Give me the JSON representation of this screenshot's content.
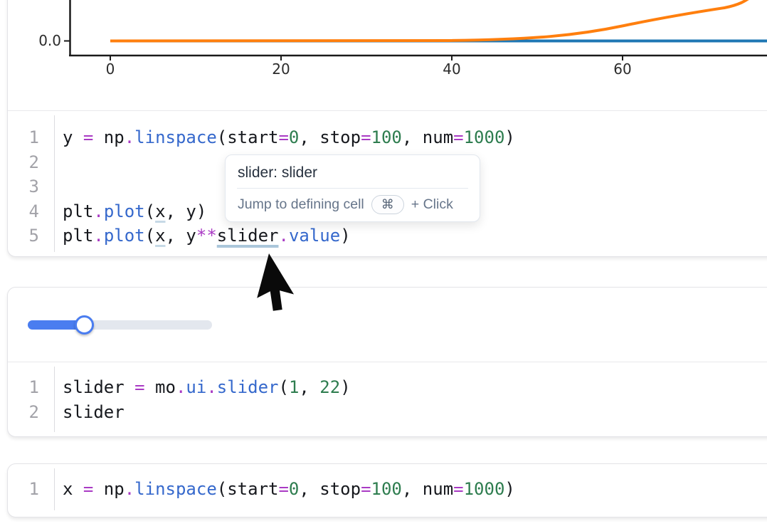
{
  "app": {
    "name": "marimo notebook"
  },
  "colors": {
    "accent_blue": "#4a7df0",
    "plot_blue": "#1f77b4",
    "plot_orange": "#ff7f0e",
    "syntax_operator": "#a93ac4",
    "syntax_function": "#3568cc",
    "syntax_number": "#2e7d4f",
    "slider_track": "#e3e7ee"
  },
  "chart": {
    "y_tick_label": "0.0",
    "x_tick_labels": [
      "0",
      "20",
      "40",
      "60"
    ]
  },
  "chart_data": {
    "type": "line",
    "title": "",
    "xlabel": "",
    "ylabel": "",
    "x_ticks_shown": [
      0,
      20,
      40,
      60
    ],
    "y_ticks_shown": [
      0.0
    ],
    "grid": false,
    "legend": "none",
    "note": "top of figure cropped by viewport; x axis continues past 60",
    "series": [
      {
        "name": "plt.plot(x, y)",
        "color": "#1f77b4",
        "description": "y = linspace(0,100,1000); appears as flat line at 0.0 across full x range at this y scale"
      },
      {
        "name": "plt.plot(x, y**slider.value)",
        "color": "#ff7f0e",
        "description": "flat at 0.0 until x≈45 then rises steeply, leaving the visible crop near x≈78"
      }
    ]
  },
  "tooltip": {
    "title": "slider: slider",
    "action": "Jump to defining cell",
    "key": "⌘",
    "suffix": "+ Click"
  },
  "slider": {
    "value_position_percent": 31,
    "min_from_code": 1,
    "max_from_code": 22
  },
  "cells": [
    {
      "id": "cell-plot",
      "lines": [
        {
          "n": "1",
          "tokens": [
            {
              "t": "y ",
              "c": "d"
            },
            {
              "t": "=",
              "c": "o"
            },
            {
              "t": " np",
              "c": "d"
            },
            {
              "t": ".",
              "c": "o"
            },
            {
              "t": "linspace",
              "c": "f"
            },
            {
              "t": "(start",
              "c": "d"
            },
            {
              "t": "=",
              "c": "o"
            },
            {
              "t": "0",
              "c": "n"
            },
            {
              "t": ", stop",
              "c": "d"
            },
            {
              "t": "=",
              "c": "o"
            },
            {
              "t": "100",
              "c": "n"
            },
            {
              "t": ", num",
              "c": "d"
            },
            {
              "t": "=",
              "c": "o"
            },
            {
              "t": "1000",
              "c": "n"
            },
            {
              "t": ")",
              "c": "d"
            }
          ]
        },
        {
          "n": "2",
          "tokens": []
        },
        {
          "n": "3",
          "tokens": []
        },
        {
          "n": "4",
          "tokens": [
            {
              "t": "plt",
              "c": "d"
            },
            {
              "t": ".",
              "c": "o"
            },
            {
              "t": "plot",
              "c": "f"
            },
            {
              "t": "(",
              "c": "d"
            },
            {
              "t": "x",
              "c": "dx"
            },
            {
              "t": ", y)",
              "c": "d"
            }
          ]
        },
        {
          "n": "5",
          "tokens": [
            {
              "t": "plt",
              "c": "d"
            },
            {
              "t": ".",
              "c": "o"
            },
            {
              "t": "plot",
              "c": "f"
            },
            {
              "t": "(",
              "c": "d"
            },
            {
              "t": "x",
              "c": "dx"
            },
            {
              "t": ", y",
              "c": "d"
            },
            {
              "t": "**",
              "c": "o"
            },
            {
              "t": "slider",
              "c": "dh"
            },
            {
              "t": ".",
              "c": "o"
            },
            {
              "t": "value",
              "c": "f"
            },
            {
              "t": ")",
              "c": "d"
            }
          ]
        }
      ]
    },
    {
      "id": "cell-slider",
      "lines": [
        {
          "n": "1",
          "tokens": [
            {
              "t": "slider ",
              "c": "d"
            },
            {
              "t": "=",
              "c": "o"
            },
            {
              "t": " mo",
              "c": "d"
            },
            {
              "t": ".",
              "c": "o"
            },
            {
              "t": "ui",
              "c": "f"
            },
            {
              "t": ".",
              "c": "o"
            },
            {
              "t": "slider",
              "c": "f"
            },
            {
              "t": "(",
              "c": "d"
            },
            {
              "t": "1",
              "c": "n"
            },
            {
              "t": ", ",
              "c": "d"
            },
            {
              "t": "22",
              "c": "n"
            },
            {
              "t": ")",
              "c": "d"
            }
          ]
        },
        {
          "n": "2",
          "tokens": [
            {
              "t": "slider",
              "c": "d"
            }
          ]
        }
      ]
    },
    {
      "id": "cell-x",
      "lines": [
        {
          "n": "1",
          "tokens": [
            {
              "t": "x ",
              "c": "d"
            },
            {
              "t": "=",
              "c": "o"
            },
            {
              "t": " np",
              "c": "d"
            },
            {
              "t": ".",
              "c": "o"
            },
            {
              "t": "linspace",
              "c": "f"
            },
            {
              "t": "(start",
              "c": "d"
            },
            {
              "t": "=",
              "c": "o"
            },
            {
              "t": "0",
              "c": "n"
            },
            {
              "t": ", stop",
              "c": "d"
            },
            {
              "t": "=",
              "c": "o"
            },
            {
              "t": "100",
              "c": "n"
            },
            {
              "t": ", num",
              "c": "d"
            },
            {
              "t": "=",
              "c": "o"
            },
            {
              "t": "1000",
              "c": "n"
            },
            {
              "t": ")",
              "c": "d"
            }
          ]
        }
      ]
    }
  ]
}
